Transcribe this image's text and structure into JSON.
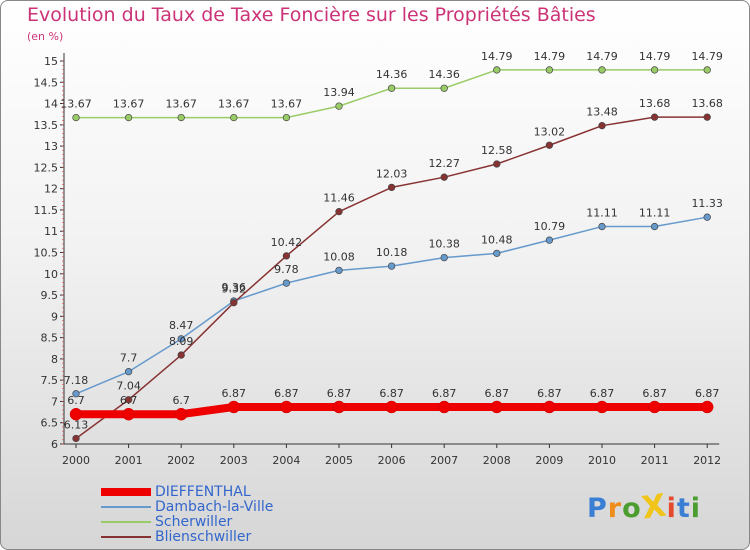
{
  "title": "Evolution du Taux de Taxe Foncière sur les Propriétés Bâties",
  "subtitle": "(en %)",
  "logo": {
    "text": "ProXiti",
    "colors": [
      "#3b7fd4",
      "#f08c1a",
      "#4a9d2e",
      "#f0c419",
      "#e64a2e",
      "#3b7fd4",
      "#4a9d2e"
    ]
  },
  "chart_data": {
    "type": "line",
    "title": "Evolution du Taux de Taxe Foncière sur les Propriétés Bâties",
    "ylabel": "(en %)",
    "x": [
      "2000",
      "2001",
      "2002",
      "2003",
      "2004",
      "2005",
      "2006",
      "2007",
      "2008",
      "2009",
      "2010",
      "2011",
      "2012"
    ],
    "ylim": [
      6,
      15
    ],
    "yticks": [
      "6",
      "6.5",
      "7",
      "7.5",
      "8",
      "8.5",
      "9",
      "9.5",
      "10",
      "10.5",
      "11",
      "11.5",
      "12",
      "12.5",
      "13",
      "13.5",
      "14",
      "14.5",
      "15"
    ],
    "grid": false,
    "legend_position": "bottom-left",
    "series": [
      {
        "name": "DIEFFENTHAL",
        "color": "#ee0000",
        "values": [
          6.7,
          6.7,
          6.7,
          6.87,
          6.87,
          6.87,
          6.87,
          6.87,
          6.87,
          6.87,
          6.87,
          6.87,
          6.87
        ],
        "labels": [
          "6.7",
          "6.7",
          "6.7",
          "6.87",
          "6.87",
          "6.87",
          "6.87",
          "6.87",
          "6.87",
          "6.87",
          "6.87",
          "6.87",
          "6.87"
        ]
      },
      {
        "name": "Dambach-la-Ville",
        "color": "#6699cc",
        "values": [
          7.18,
          7.7,
          8.47,
          9.36,
          9.78,
          10.08,
          10.18,
          10.38,
          10.48,
          10.79,
          11.11,
          11.11,
          11.33
        ],
        "labels": [
          "7.18",
          "7.7",
          "8.47",
          "9.36",
          "9.78",
          "10.08",
          "10.18",
          "10.38",
          "10.48",
          "10.79",
          "11.11",
          "11.11",
          "11.33"
        ]
      },
      {
        "name": "Scherwiller",
        "color": "#99cc66",
        "values": [
          13.67,
          13.67,
          13.67,
          13.67,
          13.67,
          13.94,
          14.36,
          14.36,
          14.79,
          14.79,
          14.79,
          14.79,
          14.79
        ],
        "labels": [
          "13.67",
          "13.67",
          "13.67",
          "13.67",
          "13.67",
          "13.94",
          "14.36",
          "14.36",
          "14.79",
          "14.79",
          "14.79",
          "14.79",
          "14.79"
        ]
      },
      {
        "name": "Blienschwiller",
        "color": "#883333",
        "values": [
          6.13,
          7.04,
          8.09,
          9.32,
          10.42,
          11.46,
          12.03,
          12.27,
          12.58,
          13.02,
          13.48,
          13.68,
          13.68
        ],
        "labels": [
          "6.13",
          "7.04",
          "8.09",
          "9.32",
          "10.42",
          "11.46",
          "12.03",
          "12.27",
          "12.58",
          "13.02",
          "13.48",
          "13.68",
          "13.68"
        ]
      }
    ]
  }
}
